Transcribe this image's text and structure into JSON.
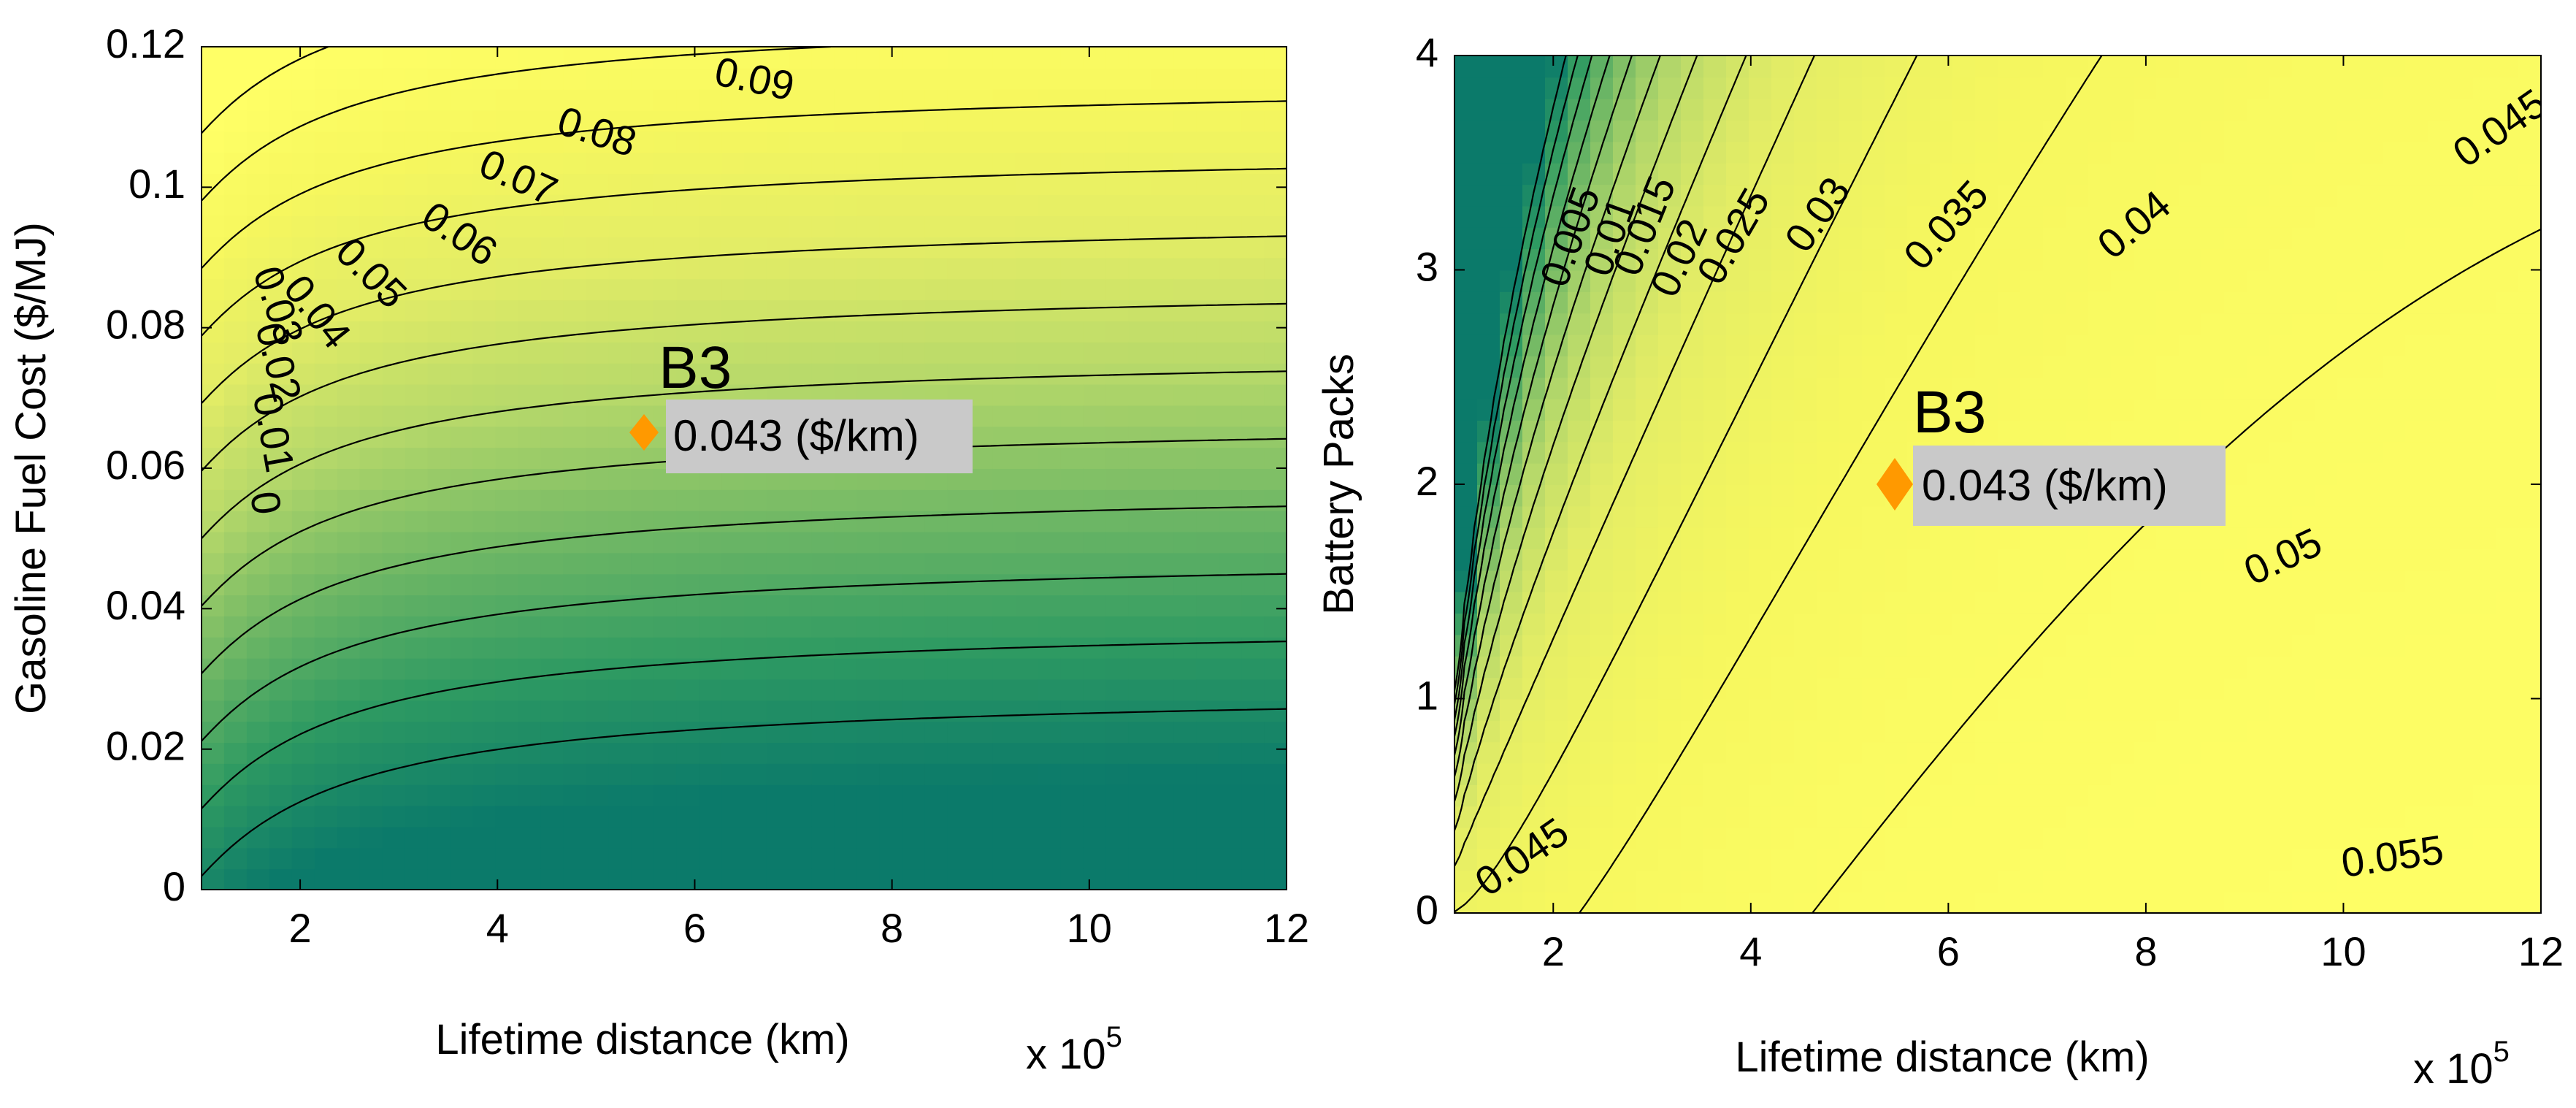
{
  "figure": {
    "panel_count": 2,
    "common_colormap": [
      "#0b7a6a",
      "#2e9a62",
      "#71b865",
      "#b5d86a",
      "#e2ec66",
      "#f6f75e",
      "#ffff66"
    ]
  },
  "chart_data": [
    {
      "type": "contour",
      "title": "",
      "xlabel": "Lifetime distance (km)",
      "ylabel": "Gasoline Fuel Cost ($/MJ)",
      "x_exponent": {
        "base": "x 10",
        "power": "5"
      },
      "xlim": [
        1,
        12
      ],
      "ylim": [
        0,
        0.12
      ],
      "x_ticks": [
        2,
        4,
        6,
        8,
        10,
        12
      ],
      "x_tick_labels": [
        "2",
        "4",
        "6",
        "8",
        "10",
        "12"
      ],
      "y_ticks": [
        0,
        0.02,
        0.04,
        0.06,
        0.08,
        0.1,
        0.12
      ],
      "y_tick_labels": [
        "0",
        "0.02",
        "0.04",
        "0.06",
        "0.08",
        "0.1",
        "0.12"
      ],
      "z_range": [
        -0.02,
        0.1
      ],
      "contour_levels": [
        -0.01,
        0,
        0.01,
        0.02,
        0.03,
        0.04,
        0.05,
        0.06,
        0.07,
        0.08,
        0.09,
        0.1
      ],
      "contour_labels": [
        {
          "text": "0.09",
          "x": 6.6,
          "y": 0.115,
          "angle": 12
        },
        {
          "text": "0.08",
          "x": 5.0,
          "y": 0.1075,
          "angle": 18
        },
        {
          "text": "0.07",
          "x": 4.2,
          "y": 0.101,
          "angle": 24
        },
        {
          "text": "0.06",
          "x": 3.6,
          "y": 0.093,
          "angle": 34
        },
        {
          "text": "0.05",
          "x": 2.7,
          "y": 0.0875,
          "angle": 45
        },
        {
          "text": "0.04",
          "x": 2.15,
          "y": 0.082,
          "angle": 52
        },
        {
          "text": "0.03",
          "x": 1.75,
          "y": 0.083,
          "angle": 72
        },
        {
          "text": "0.02",
          "x": 1.75,
          "y": 0.075,
          "angle": 76
        },
        {
          "text": "0.01",
          "x": 1.7,
          "y": 0.065,
          "angle": 80
        },
        {
          "text": "0",
          "x": 1.62,
          "y": 0.055,
          "angle": 82
        }
      ],
      "marker": {
        "name": "B3",
        "x": 5.5,
        "y": 0.065,
        "value_text": "0.043 ($/km)",
        "color": "#ff9900"
      }
    },
    {
      "type": "contour",
      "title": "",
      "xlabel": "Lifetime distance (km)",
      "ylabel": "Battery Packs",
      "x_exponent": {
        "base": "x 10",
        "power": "5"
      },
      "xlim": [
        1,
        12
      ],
      "ylim": [
        0,
        4
      ],
      "x_ticks": [
        2,
        4,
        6,
        8,
        10,
        12
      ],
      "x_tick_labels": [
        "2",
        "4",
        "6",
        "8",
        "10",
        "12"
      ],
      "y_ticks": [
        0,
        1,
        2,
        3,
        4
      ],
      "y_tick_labels": [
        "0",
        "1",
        "2",
        "3",
        "4"
      ],
      "z_range": [
        -0.005,
        0.06
      ],
      "contour_levels": [
        0,
        0.005,
        0.01,
        0.015,
        0.02,
        0.025,
        0.03,
        0.035,
        0.04,
        0.045,
        0.05,
        0.055
      ],
      "contour_labels": [
        {
          "text": "0.005",
          "x": 2.2,
          "y": 3.15,
          "angle": -70
        },
        {
          "text": "0.01",
          "x": 2.6,
          "y": 3.15,
          "angle": -70
        },
        {
          "text": "0.015",
          "x": 2.95,
          "y": 3.2,
          "angle": -68
        },
        {
          "text": "0.02",
          "x": 3.3,
          "y": 3.05,
          "angle": -65
        },
        {
          "text": "0.025",
          "x": 3.85,
          "y": 3.15,
          "angle": -60
        },
        {
          "text": "0.03",
          "x": 4.7,
          "y": 3.25,
          "angle": -55
        },
        {
          "text": "0.035",
          "x": 6.0,
          "y": 3.2,
          "angle": -48
        },
        {
          "text": "0.04",
          "x": 7.9,
          "y": 3.2,
          "angle": -40
        },
        {
          "text": "0.045",
          "x": 11.6,
          "y": 3.65,
          "angle": -35
        },
        {
          "text": "0.045",
          "x": 1.7,
          "y": 0.25,
          "angle": -35
        },
        {
          "text": "0.05",
          "x": 9.4,
          "y": 1.65,
          "angle": -25
        },
        {
          "text": "0.055",
          "x": 10.5,
          "y": 0.25,
          "angle": -8
        }
      ],
      "marker": {
        "name": "B3",
        "x": 5.5,
        "y": 2,
        "value_text": "0.043 ($/km)",
        "color": "#ff9900"
      }
    }
  ]
}
